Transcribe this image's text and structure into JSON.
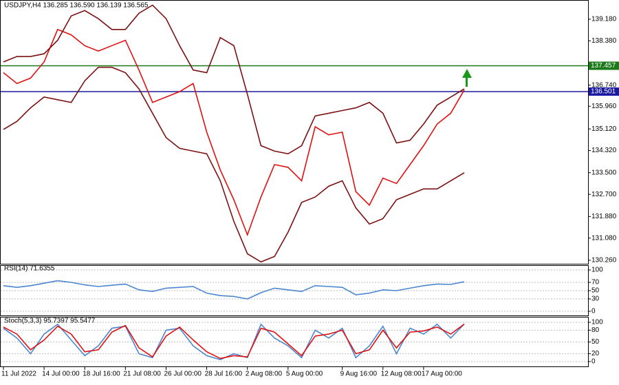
{
  "chart_data": [
    {
      "type": "line",
      "title": "USDJPY,H4  136.285 136.590 136.139 136.565",
      "categories": [
        "11 Jul 2022",
        null,
        null,
        "14 Jul 00:00",
        null,
        null,
        "18 Jul 16:00",
        null,
        null,
        "21 Jul 08:00",
        null,
        null,
        "26 Jul 00:00",
        null,
        null,
        "28 Jul 16:00",
        null,
        null,
        "2 Aug 08:00",
        null,
        null,
        "5 Aug 00:00",
        null,
        null,
        null,
        "9 Aug 16:00",
        null,
        null,
        "12 Aug 08:00",
        null,
        null,
        "17 Aug 00:00",
        null,
        null,
        null
      ],
      "ylim": [
        130.13,
        139.89
      ],
      "yticks": [
        {
          "value": 139.18,
          "label": "139.180"
        },
        {
          "value": 138.38,
          "label": "138.380"
        },
        {
          "value": 136.74,
          "label": "136.740"
        },
        {
          "value": 135.96,
          "label": "135.960"
        },
        {
          "value": 135.12,
          "label": "135.120"
        },
        {
          "value": 134.32,
          "label": "134.320"
        },
        {
          "value": 133.5,
          "label": "133.500"
        },
        {
          "value": 132.7,
          "label": "132.700"
        },
        {
          "value": 131.88,
          "label": "131.880"
        },
        {
          "value": 131.08,
          "label": "131.080"
        },
        {
          "value": 130.26,
          "label": "130.260"
        }
      ],
      "levels": [
        {
          "value": 137.457,
          "color": "#1a7a1a"
        },
        {
          "value": 136.501,
          "color": "#1a1aa0"
        }
      ],
      "series": [
        {
          "color": "#e01010",
          "values": [
            137.2,
            136.8,
            137.0,
            137.6,
            138.8,
            138.6,
            138.2,
            138.0,
            138.2,
            138.4,
            137.3,
            136.1,
            136.3,
            136.5,
            136.8,
            135.0,
            133.6,
            132.5,
            131.2,
            132.6,
            133.8,
            133.7,
            133.2,
            135.2,
            134.9,
            135.0,
            132.8,
            132.3,
            133.3,
            133.1,
            133.8,
            134.5,
            135.3,
            135.7,
            136.56
          ]
        },
        {
          "color": "#7a1010",
          "values": [
            137.6,
            137.8,
            137.8,
            137.9,
            138.4,
            139.3,
            139.5,
            139.2,
            138.8,
            138.8,
            139.4,
            139.7,
            139.2,
            138.2,
            137.3,
            137.2,
            138.5,
            138.2,
            136.4,
            134.5,
            134.3,
            134.2,
            134.5,
            135.6,
            135.7,
            135.8,
            135.9,
            136.1,
            135.7,
            134.6,
            134.7,
            135.3,
            136.0,
            136.3,
            136.6
          ]
        },
        {
          "color": "#7a1010",
          "values": [
            135.1,
            135.4,
            135.9,
            136.3,
            136.2,
            136.1,
            136.9,
            137.4,
            137.4,
            137.2,
            136.6,
            135.7,
            134.8,
            134.4,
            134.3,
            134.2,
            133.2,
            131.7,
            130.5,
            130.2,
            130.4,
            131.3,
            132.4,
            132.6,
            133.0,
            133.2,
            132.2,
            131.6,
            131.8,
            132.5,
            132.7,
            132.9,
            132.9,
            133.2,
            133.5
          ]
        }
      ]
    },
    {
      "type": "line",
      "title": "RSI(14) 71.6355",
      "ylim": [
        0,
        100
      ],
      "yticks": [
        100,
        70,
        50,
        30,
        0
      ],
      "series": [
        {
          "color": "#4a86d0",
          "values": [
            62,
            58,
            62,
            68,
            74,
            70,
            64,
            60,
            63,
            66,
            52,
            48,
            56,
            58,
            60,
            44,
            38,
            36,
            30,
            45,
            56,
            52,
            48,
            62,
            60,
            58,
            40,
            44,
            52,
            50,
            56,
            62,
            66,
            65,
            71.6
          ]
        }
      ]
    },
    {
      "type": "line",
      "title": "Stoch(5,3,3) 95.7397 95.5477",
      "ylim": [
        0,
        100
      ],
      "yticks": [
        100,
        80,
        50,
        20,
        0
      ],
      "series": [
        {
          "color": "#4a86d0",
          "values": [
            85,
            60,
            20,
            70,
            95,
            55,
            15,
            40,
            85,
            90,
            20,
            10,
            80,
            85,
            40,
            15,
            5,
            20,
            10,
            95,
            60,
            40,
            10,
            80,
            60,
            85,
            10,
            40,
            90,
            20,
            85,
            70,
            95,
            60,
            95.7
          ]
        },
        {
          "color": "#e01010",
          "values": [
            88,
            70,
            30,
            55,
            90,
            70,
            25,
            30,
            75,
            92,
            35,
            12,
            65,
            88,
            55,
            25,
            8,
            15,
            12,
            85,
            75,
            45,
            15,
            65,
            70,
            80,
            20,
            30,
            80,
            35,
            75,
            78,
            88,
            70,
            95.5
          ]
        }
      ]
    }
  ]
}
